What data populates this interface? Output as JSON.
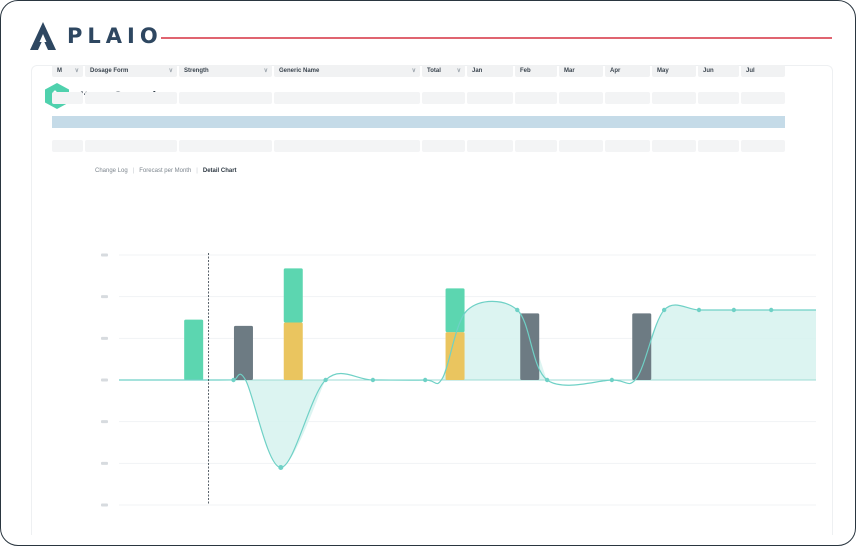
{
  "brand": {
    "name": "PLAIO",
    "accent": "#e06470",
    "brand_color": "#2e4761"
  },
  "panel": {
    "title": "Item Overview",
    "icon": "hexagon-dots-icon",
    "icon_color": "#4fd1ad"
  },
  "table": {
    "columns": [
      {
        "label": "M",
        "dropdown": true
      },
      {
        "label": "Dosage Form",
        "dropdown": true
      },
      {
        "label": "Strength",
        "dropdown": true
      },
      {
        "label": "Generic Name",
        "dropdown": true
      },
      {
        "label": "Total",
        "dropdown": true
      },
      {
        "label": "Jan",
        "dropdown": false
      },
      {
        "label": "Feb",
        "dropdown": false
      },
      {
        "label": "Mar",
        "dropdown": false
      },
      {
        "label": "Apr",
        "dropdown": false
      },
      {
        "label": "May",
        "dropdown": false
      },
      {
        "label": "Jun",
        "dropdown": false
      },
      {
        "label": "Jul",
        "dropdown": false
      }
    ],
    "rows": [
      {
        "highlighted": false
      },
      {
        "highlighted": true
      },
      {
        "highlighted": false
      }
    ]
  },
  "tabs": [
    {
      "label": "Change Log",
      "active": false
    },
    {
      "label": "Forecast per Month",
      "active": false
    },
    {
      "label": "Detail Chart",
      "active": true
    }
  ],
  "chart_data": {
    "type": "bar",
    "grid": true,
    "ylim": [
      -3,
      3
    ],
    "colors": {
      "green": "#5cd6b0",
      "yellow": "#eac55f",
      "gray": "#6d7b83",
      "line": "#6fd1c6",
      "fill": "#d6f2ee"
    },
    "bars": [
      {
        "x": 3.0,
        "segments": [
          {
            "color": "green",
            "value": 1.45
          }
        ]
      },
      {
        "x": 5.0,
        "segments": [
          {
            "color": "gray",
            "value": 1.3
          }
        ]
      },
      {
        "x": 7.0,
        "segments": [
          {
            "color": "yellow",
            "value": 1.38
          },
          {
            "color": "green",
            "value": 1.3
          }
        ]
      },
      {
        "x": 13.5,
        "segments": [
          {
            "color": "yellow",
            "value": 1.15
          },
          {
            "color": "green",
            "value": 1.05
          }
        ]
      },
      {
        "x": 16.5,
        "segments": [
          {
            "color": "gray",
            "value": 1.6
          }
        ]
      },
      {
        "x": 21.0,
        "segments": [
          {
            "color": "gray",
            "value": 1.6
          }
        ]
      }
    ],
    "line": [
      [
        0.0,
        0
      ],
      [
        4.0,
        0
      ],
      [
        4.6,
        0
      ],
      [
        5.1,
        -0.02
      ],
      [
        6.5,
        -2.1
      ],
      [
        8.3,
        0
      ],
      [
        10.2,
        0
      ],
      [
        12.3,
        0
      ],
      [
        13.0,
        0.05
      ],
      [
        14.0,
        1.68
      ],
      [
        16.0,
        1.68
      ],
      [
        17.2,
        0
      ],
      [
        19.8,
        0
      ],
      [
        20.8,
        0.05
      ],
      [
        21.9,
        1.68
      ],
      [
        23.3,
        1.68
      ],
      [
        24.7,
        1.68
      ],
      [
        26.2,
        1.68
      ],
      [
        28.0,
        1.68
      ]
    ],
    "markers": [
      [
        4.6,
        0
      ],
      [
        8.3,
        0
      ],
      [
        10.2,
        0
      ],
      [
        12.3,
        0
      ],
      [
        16.0,
        1.68
      ],
      [
        17.2,
        0
      ],
      [
        19.8,
        0
      ],
      [
        21.9,
        1.68
      ],
      [
        23.3,
        1.68
      ],
      [
        24.7,
        1.68
      ],
      [
        26.2,
        1.68
      ]
    ],
    "trough": [
      6.5,
      -2.1
    ],
    "fills": [
      {
        "from": 4.6,
        "to": 8.3,
        "mode": "below"
      },
      {
        "from": 13.0,
        "to": 17.2,
        "mode": "above"
      },
      {
        "from": 20.8,
        "to": 28.0,
        "mode": "above"
      }
    ],
    "vertical_marker_x": 3.6
  }
}
